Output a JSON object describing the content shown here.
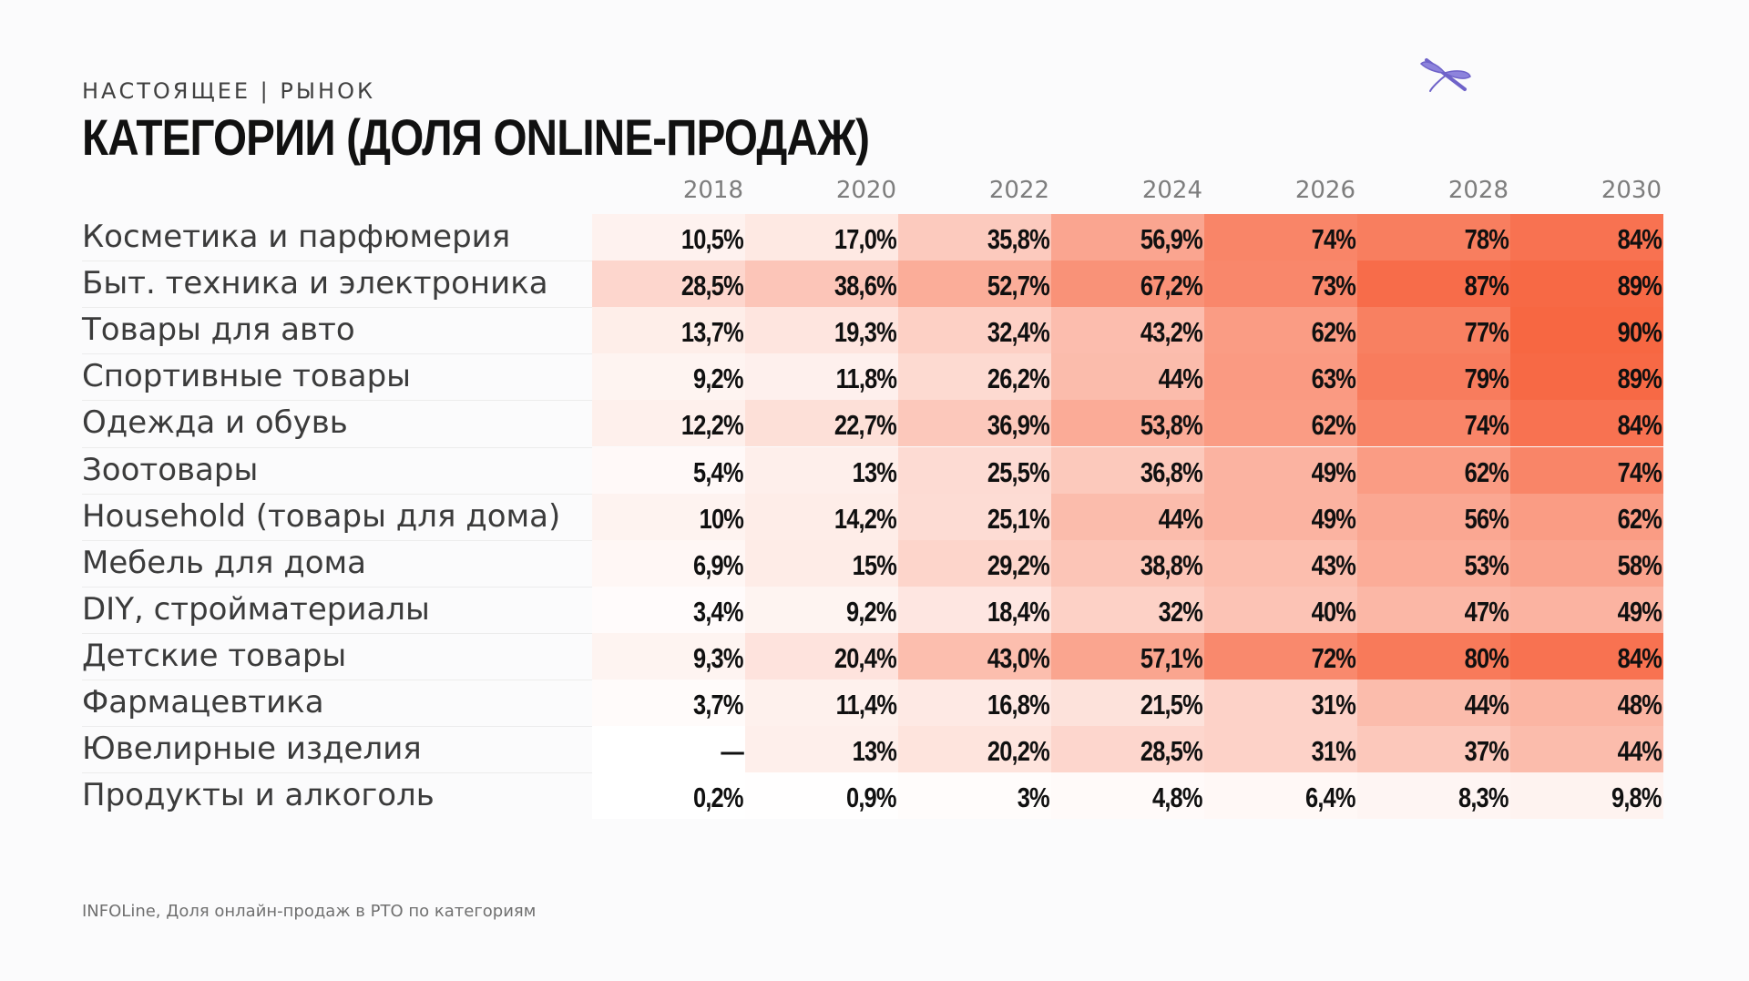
{
  "header": {
    "kicker": "НАСТОЯЩЕЕ | РЫНОК",
    "title": "КАТЕГОРИИ (ДОЛЯ ONLINE-ПРОДАЖ)"
  },
  "logo": {
    "icon": "dragonfly-icon",
    "color": "#6f63c9"
  },
  "colors": {
    "low": "#ffffff",
    "high": "#f6532a"
  },
  "source": "INFOLine, Доля онлайн-продаж в РТО по категориям",
  "chart_data": {
    "type": "heatmap",
    "title": "КАТЕГОРИИ (ДОЛЯ ONLINE-ПРОДАЖ)",
    "x": [
      "2018",
      "2020",
      "2022",
      "2024",
      "2026",
      "2028",
      "2030"
    ],
    "rows": [
      {
        "name": "Косметика и парфюмерия",
        "values": [
          10.5,
          17.0,
          35.8,
          56.9,
          74,
          78,
          84
        ],
        "labels": [
          "10,5%",
          "17,0%",
          "35,8%",
          "56,9%",
          "74%",
          "78%",
          "84%"
        ]
      },
      {
        "name": "Быт. техника и электроника",
        "values": [
          28.5,
          38.6,
          52.7,
          67.2,
          73,
          87,
          89
        ],
        "labels": [
          "28,5%",
          "38,6%",
          "52,7%",
          "67,2%",
          "73%",
          "87%",
          "89%"
        ]
      },
      {
        "name": "Товары для авто",
        "values": [
          13.7,
          19.3,
          32.4,
          43.2,
          62,
          77,
          90
        ],
        "labels": [
          "13,7%",
          "19,3%",
          "32,4%",
          "43,2%",
          "62%",
          "77%",
          "90%"
        ]
      },
      {
        "name": "Спортивные товары",
        "values": [
          9.2,
          11.8,
          26.2,
          44,
          63,
          79,
          89
        ],
        "labels": [
          "9,2%",
          "11,8%",
          "26,2%",
          "44%",
          "63%",
          "79%",
          "89%"
        ]
      },
      {
        "name": "Одежда и обувь",
        "values": [
          12.2,
          22.7,
          36.9,
          53.8,
          62,
          74,
          84
        ],
        "labels": [
          "12,2%",
          "22,7%",
          "36,9%",
          "53,8%",
          "62%",
          "74%",
          "84%"
        ]
      },
      {
        "name": "Зоотовары",
        "values": [
          5.4,
          13,
          25.5,
          36.8,
          49,
          62,
          74
        ],
        "labels": [
          "5,4%",
          "13%",
          "25,5%",
          "36,8%",
          "49%",
          "62%",
          "74%"
        ]
      },
      {
        "name": "Household (товары для дома)",
        "values": [
          10,
          14.2,
          25.1,
          44,
          49,
          56,
          62
        ],
        "labels": [
          "10%",
          "14,2%",
          "25,1%",
          "44%",
          "49%",
          "56%",
          "62%"
        ]
      },
      {
        "name": "Мебель для дома",
        "values": [
          6.9,
          15,
          29.2,
          38.8,
          43,
          53,
          58
        ],
        "labels": [
          "6,9%",
          "15%",
          "29,2%",
          "38,8%",
          "43%",
          "53%",
          "58%"
        ]
      },
      {
        "name": "DIY, стройматериалы",
        "values": [
          3.4,
          9.2,
          18.4,
          32,
          40,
          47,
          49
        ],
        "labels": [
          "3,4%",
          "9,2%",
          "18,4%",
          "32%",
          "40%",
          "47%",
          "49%"
        ]
      },
      {
        "name": "Детские товары",
        "values": [
          9.3,
          20.4,
          43.0,
          57.1,
          72,
          80,
          84
        ],
        "labels": [
          "9,3%",
          "20,4%",
          "43,0%",
          "57,1%",
          "72%",
          "80%",
          "84%"
        ]
      },
      {
        "name": "Фармацевтика",
        "values": [
          3.7,
          11.4,
          16.8,
          21.5,
          31,
          44,
          48
        ],
        "labels": [
          "3,7%",
          "11,4%",
          "16,8%",
          "21,5%",
          "31%",
          "44%",
          "48%"
        ]
      },
      {
        "name": "Ювелирные изделия",
        "values": [
          null,
          13,
          20.2,
          28.5,
          31,
          37,
          44
        ],
        "labels": [
          "—",
          "13%",
          "20,2%",
          "28,5%",
          "31%",
          "37%",
          "44%"
        ]
      },
      {
        "name": "Продукты и алкоголь",
        "values": [
          0.2,
          0.9,
          3,
          4.8,
          6.4,
          8.3,
          9.8
        ],
        "labels": [
          "0,2%",
          "0,9%",
          "3%",
          "4,8%",
          "6,4%",
          "8,3%",
          "9,8%"
        ]
      }
    ],
    "value_unit": "%",
    "color_range": [
      0,
      100
    ]
  }
}
